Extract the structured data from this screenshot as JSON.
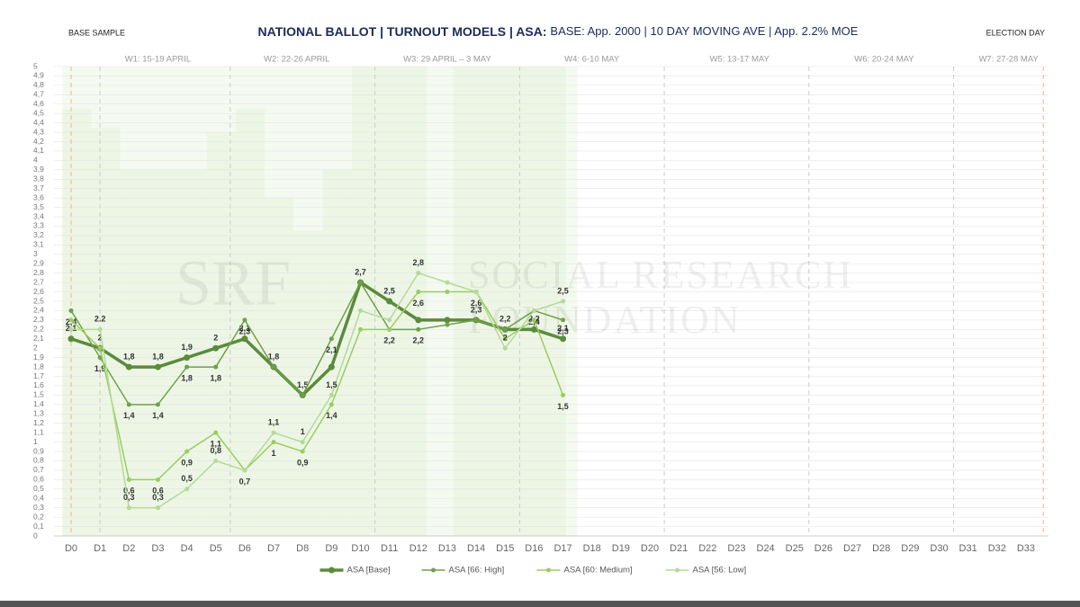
{
  "chart_data": {
    "type": "line",
    "title": "NATIONAL BALLOT | TURNOUT MODELS | ASA:",
    "subtitle": "BASE: App. 2000 | 10 DAY MOVING AVE | App. 2.2% MOE",
    "left_note": "BASE SAMPLE",
    "right_note": "ELECTION DAY",
    "watermark": [
      "SRF",
      "SOCIAL RESEARCH",
      "FOUNDATION"
    ],
    "week_labels": [
      "W1: 15-19 APRIL",
      "W2: 22-26 APRIL",
      "W3: 29 APRIL – 3 MAY",
      "W4: 6-10 MAY",
      "W5: 13-17 MAY",
      "W6: 20-24 MAY",
      "W7: 27-28 MAY"
    ],
    "categories": [
      "D0",
      "D1",
      "D2",
      "D3",
      "D4",
      "D5",
      "D6",
      "D7",
      "D8",
      "D9",
      "D10",
      "D11",
      "D12",
      "D13",
      "D14",
      "D15",
      "D16",
      "D17",
      "D18",
      "D19",
      "D20",
      "D21",
      "D22",
      "D23",
      "D24",
      "D25",
      "D26",
      "D27",
      "D28",
      "D29",
      "D30",
      "D31",
      "D32",
      "D33"
    ],
    "ylim": [
      0,
      5
    ],
    "yticks": [
      0,
      {
        "value": 0.1,
        "label": "0,1"
      },
      {
        "value": 0.2,
        "label": "0,2"
      },
      {
        "value": 0.3,
        "label": "0,3"
      },
      {
        "value": 0.4,
        "label": "0,4"
      },
      {
        "value": 0.5,
        "label": "0,5"
      },
      {
        "value": 0.6,
        "label": "0,6"
      },
      {
        "value": 0.7,
        "label": "0,7"
      },
      {
        "value": 0.8,
        "label": "0,8"
      },
      {
        "value": 0.9,
        "label": "0,9"
      },
      1,
      {
        "value": 1.1,
        "label": "1,1"
      },
      {
        "value": 1.2,
        "label": "1,2"
      },
      {
        "value": 1.3,
        "label": "1,3"
      },
      {
        "value": 1.4,
        "label": "1,4"
      },
      {
        "value": 1.5,
        "label": "1,5"
      },
      {
        "value": 1.6,
        "label": "1,6"
      },
      {
        "value": 1.7,
        "label": "1,7"
      },
      {
        "value": 1.8,
        "label": "1,8"
      },
      {
        "value": 1.9,
        "label": "1,9"
      },
      2,
      {
        "value": 2.1,
        "label": "2,1"
      },
      {
        "value": 2.2,
        "label": "2,2"
      },
      {
        "value": 2.3,
        "label": "2,3"
      },
      {
        "value": 2.4,
        "label": "2,4"
      },
      {
        "value": 2.5,
        "label": "2,5"
      },
      {
        "value": 2.6,
        "label": "2,6"
      },
      {
        "value": 2.7,
        "label": "2,7"
      },
      {
        "value": 2.8,
        "label": "2,8"
      },
      {
        "value": 2.9,
        "label": "2,9"
      },
      3,
      {
        "value": 3.1,
        "label": "3,1"
      },
      {
        "value": 3.2,
        "label": "3,2"
      },
      {
        "value": 3.3,
        "label": "3,3"
      },
      {
        "value": 3.4,
        "label": "3,4"
      },
      {
        "value": 3.5,
        "label": "3,5"
      },
      {
        "value": 3.6,
        "label": "3,6"
      },
      {
        "value": 3.7,
        "label": "3,7"
      },
      {
        "value": 3.8,
        "label": "3,8"
      },
      {
        "value": 3.9,
        "label": "3,9"
      },
      4,
      {
        "value": 4.1,
        "label": "4,1"
      },
      {
        "value": 4.2,
        "label": "4,2"
      },
      {
        "value": 4.3,
        "label": "4,3"
      },
      {
        "value": 4.4,
        "label": "4,4"
      },
      {
        "value": 4.5,
        "label": "4,5"
      },
      {
        "value": 4.6,
        "label": "4,6"
      },
      {
        "value": 4.7,
        "label": "4,7"
      },
      {
        "value": 4.8,
        "label": "4,8"
      },
      {
        "value": 4.9,
        "label": "4,9"
      },
      5
    ],
    "grid": true,
    "series": [
      {
        "name": "ASA [Base]",
        "color": "#5b8a3c",
        "width": 3.5,
        "values": [
          2.1,
          2.0,
          1.8,
          1.8,
          1.9,
          2.0,
          2.1,
          1.8,
          1.5,
          1.8,
          2.7,
          2.5,
          2.3,
          2.3,
          2.3,
          2.2,
          2.2,
          2.1,
          null,
          null,
          null,
          null,
          null,
          null,
          null,
          null,
          null,
          null,
          null,
          null,
          null,
          null,
          null,
          null
        ],
        "value_labels": [
          "2,1",
          "2",
          "1,8",
          "1,8",
          "1,9",
          "2",
          "2,1",
          "1,8",
          "1,5",
          null,
          "2,7",
          "2,5",
          null,
          null,
          "2,3",
          "2,2",
          "2,2",
          "2,1",
          null,
          null,
          null,
          null,
          null,
          null,
          null,
          null,
          null,
          null,
          null,
          null,
          null,
          null,
          null,
          null
        ]
      },
      {
        "name": "ASA [66: High]",
        "color": "#6fa04a",
        "width": 1.5,
        "values": [
          2.4,
          1.9,
          1.4,
          1.4,
          1.8,
          1.8,
          2.3,
          1.8,
          1.5,
          2.1,
          2.7,
          2.2,
          2.2,
          2.25,
          2.3,
          2.2,
          2.4,
          2.3,
          null,
          null,
          null,
          null,
          null,
          null,
          null,
          null,
          null,
          null,
          null,
          null,
          null,
          null,
          null,
          null
        ],
        "value_labels": [
          "2,4",
          "1,9",
          "1,4",
          "1,4",
          "1,8",
          "1,8",
          "2,3",
          null,
          null,
          "2,1",
          null,
          "2,2",
          "2,2",
          null,
          null,
          null,
          "2,4",
          "2,3",
          null,
          null,
          null,
          null,
          null,
          null,
          null,
          null,
          null,
          null,
          null,
          null,
          null,
          null,
          null,
          null
        ]
      },
      {
        "name": "ASA [60: Medium]",
        "color": "#9ccc5e",
        "width": 1.5,
        "values": [
          2.3,
          2.0,
          0.6,
          0.6,
          0.9,
          1.1,
          0.7,
          1.0,
          0.9,
          1.4,
          2.2,
          2.2,
          2.6,
          2.6,
          2.6,
          2.1,
          2.3,
          1.5,
          null,
          null,
          null,
          null,
          null,
          null,
          null,
          null,
          null,
          null,
          null,
          null,
          null,
          null,
          null,
          null
        ],
        "value_labels": [
          null,
          null,
          "0,6",
          "0,6",
          "0,9",
          "1,1",
          "0,7",
          "1",
          "0,9",
          "1,4",
          null,
          null,
          "2,6",
          null,
          "2,6",
          null,
          null,
          "1,5",
          null,
          null,
          null,
          null,
          null,
          null,
          null,
          null,
          null,
          null,
          null,
          null,
          null,
          null,
          null,
          null
        ]
      },
      {
        "name": "ASA [56: Low]",
        "color": "#b5d99a",
        "width": 1.5,
        "values": [
          2.2,
          2.2,
          0.3,
          0.3,
          0.5,
          0.8,
          0.7,
          1.1,
          1.0,
          1.5,
          2.4,
          2.3,
          2.8,
          2.7,
          2.6,
          2.0,
          2.4,
          2.5,
          null,
          null,
          null,
          null,
          null,
          null,
          null,
          null,
          null,
          null,
          null,
          null,
          null,
          null,
          null,
          null
        ],
        "value_labels": [
          null,
          "2.2",
          "0,3",
          "0,3",
          "0,5",
          "0,8",
          null,
          "1,1",
          "1",
          "1,5",
          null,
          null,
          "2,8",
          null,
          null,
          "2",
          null,
          "2,5",
          null,
          null,
          null,
          null,
          null,
          null,
          null,
          null,
          null,
          null,
          null,
          null,
          null,
          null,
          null,
          null
        ]
      }
    ]
  }
}
